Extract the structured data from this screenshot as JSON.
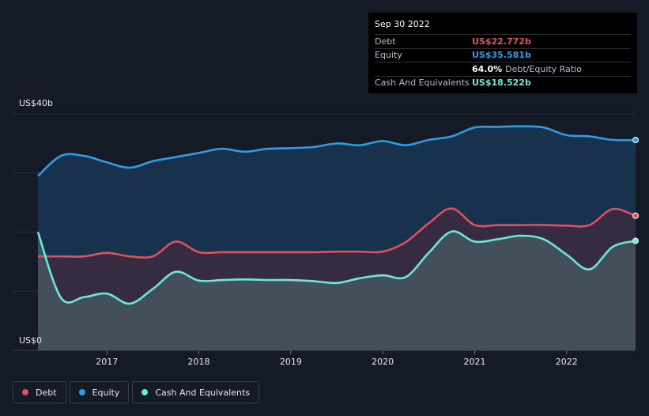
{
  "tooltip": {
    "date": "Sep 30 2022",
    "debt_label": "Debt",
    "debt_value": "US$22.772b",
    "equity_label": "Equity",
    "equity_value": "US$35.581b",
    "ratio_value": "64.0%",
    "ratio_label": "Debt/Equity Ratio",
    "cash_label": "Cash And Equivalents",
    "cash_value": "US$18.522b"
  },
  "legend": {
    "debt": "Debt",
    "equity": "Equity",
    "cash": "Cash And Equivalents"
  },
  "colors": {
    "debt": "#e0505e",
    "equity": "#2f9be6",
    "cash": "#6ee8d6",
    "background": "#151b26"
  },
  "chart_data": {
    "type": "area",
    "ylabel_top": "US$40b",
    "ylabel_bottom": "US$0",
    "ylim": [
      0,
      40
    ],
    "xlim": [
      2016.25,
      2022.75
    ],
    "x_ticks": [
      "2017",
      "2018",
      "2019",
      "2020",
      "2021",
      "2022"
    ],
    "x_tick_values": [
      2017,
      2018,
      2019,
      2020,
      2021,
      2022
    ],
    "series": [
      {
        "name": "Equity",
        "x": [
          2016.25,
          2016.5,
          2016.75,
          2017.0,
          2017.25,
          2017.5,
          2017.75,
          2018.0,
          2018.25,
          2018.5,
          2018.75,
          2019.0,
          2019.25,
          2019.5,
          2019.75,
          2020.0,
          2020.25,
          2020.5,
          2020.75,
          2021.0,
          2021.25,
          2021.5,
          2021.75,
          2022.0,
          2022.25,
          2022.5,
          2022.75
        ],
        "values": [
          29.5,
          32.9,
          32.9,
          31.8,
          30.9,
          32.0,
          32.7,
          33.4,
          34.1,
          33.6,
          34.1,
          34.2,
          34.4,
          35.0,
          34.7,
          35.4,
          34.7,
          35.6,
          36.2,
          37.7,
          37.8,
          37.9,
          37.7,
          36.4,
          36.2,
          35.6,
          35.581
        ]
      },
      {
        "name": "Debt",
        "x": [
          2016.25,
          2016.5,
          2016.75,
          2017.0,
          2017.25,
          2017.5,
          2017.75,
          2018.0,
          2018.25,
          2018.5,
          2018.75,
          2019.0,
          2019.25,
          2019.5,
          2019.75,
          2020.0,
          2020.25,
          2020.5,
          2020.75,
          2021.0,
          2021.25,
          2021.5,
          2021.75,
          2022.0,
          2022.25,
          2022.5,
          2022.75
        ],
        "values": [
          15.9,
          15.9,
          15.9,
          16.5,
          15.9,
          15.9,
          18.4,
          16.6,
          16.6,
          16.6,
          16.6,
          16.6,
          16.6,
          16.7,
          16.7,
          16.7,
          18.3,
          21.5,
          24.0,
          21.2,
          21.2,
          21.2,
          21.2,
          21.1,
          21.2,
          23.9,
          22.772
        ]
      },
      {
        "name": "Cash And Equivalents",
        "x": [
          2016.25,
          2016.5,
          2016.75,
          2017.0,
          2017.25,
          2017.5,
          2017.75,
          2018.0,
          2018.25,
          2018.5,
          2018.75,
          2019.0,
          2019.25,
          2019.5,
          2019.75,
          2020.0,
          2020.25,
          2020.5,
          2020.75,
          2021.0,
          2021.25,
          2021.5,
          2021.75,
          2022.0,
          2022.25,
          2022.5,
          2022.75
        ],
        "values": [
          20.0,
          8.9,
          9.0,
          9.6,
          7.9,
          10.4,
          13.3,
          11.8,
          11.9,
          12.0,
          11.9,
          11.9,
          11.7,
          11.4,
          12.2,
          12.7,
          12.4,
          16.5,
          20.1,
          18.4,
          18.8,
          19.4,
          18.8,
          16.2,
          13.7,
          17.5,
          18.522
        ]
      }
    ],
    "grid": true,
    "legend_position": "bottom-left"
  }
}
